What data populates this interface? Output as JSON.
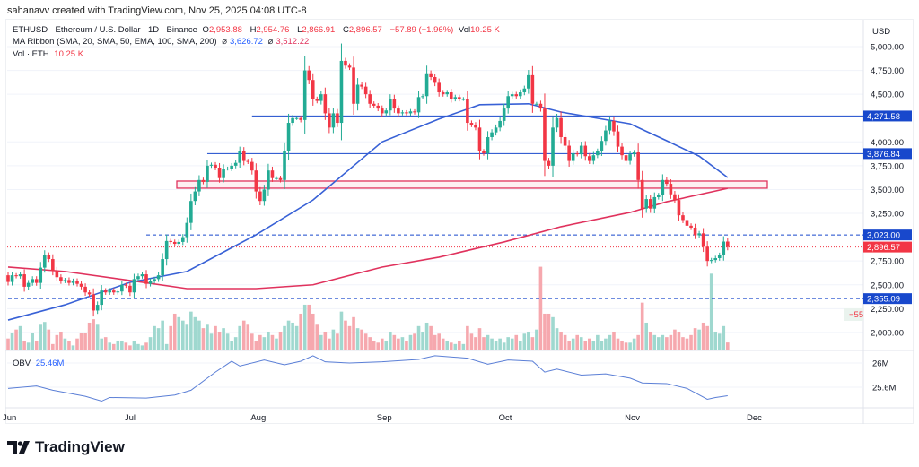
{
  "header": {
    "credit": "sahanavv created with TradingView.com, Nov 25, 2025 04:08 UTC-8"
  },
  "legend": {
    "symbol": "ETHUSD · Ethereum / U.S. Dollar · 1D · Binance",
    "o_label": "O",
    "o": "2,953.88",
    "h_label": "H",
    "h": "2,954.76",
    "l_label": "L",
    "l": "2,866.91",
    "c_label": "C",
    "c": "2,896.57",
    "change": "−57.89 (−1.96%)",
    "vol_label": "Vol",
    "vol": "10.25 K",
    "ma_title": "MA Ribbon (SMA, 20, SMA, 50, EMA, 100, SMA, 200)",
    "ma_sym1": "⌀",
    "ma1": "3,626.72",
    "ma_sym2": "⌀",
    "ma2": "3,512.22",
    "vol_title": "Vol · ETH",
    "vol_value": "10.25 K",
    "obv_title": "OBV",
    "obv_value": "25.46M"
  },
  "logo": {
    "text": "TradingView"
  },
  "colors": {
    "up": "#22ab94",
    "down": "#f23645",
    "vol_up": "#9fd8cf",
    "vol_down": "#f6a8ae",
    "ma_fast": "#3861d6",
    "ma_slow": "#e0325d",
    "level": "#1848cc",
    "zone": "#e0325d"
  },
  "chart_data": {
    "type": "candlestick",
    "symbol": "ETHUSD",
    "interval": "1D",
    "currency": "USD",
    "start_date": "2025-06-01",
    "end_date": "2025-11-25",
    "ylim": [
      1900,
      5080
    ],
    "y_ticks": [
      "5,000.00",
      "4,750.00",
      "4,500.00",
      "4,000.00",
      "3,750.00",
      "3,500.00",
      "3,250.00",
      "2,750.00",
      "2,500.00",
      "2,250.00",
      "2,000.00"
    ],
    "y_tick_values": [
      5000,
      4750,
      4500,
      4000,
      3750,
      3500,
      3250,
      2750,
      2500,
      2250,
      2000
    ],
    "x_ticks": [
      {
        "label": "Jun",
        "date": "2025-06-01"
      },
      {
        "label": "Jul",
        "date": "2025-07-01"
      },
      {
        "label": "Aug",
        "date": "2025-08-01"
      },
      {
        "label": "Sep",
        "date": "2025-09-01"
      },
      {
        "label": "Oct",
        "date": "2025-10-01"
      },
      {
        "label": "Nov",
        "date": "2025-11-01"
      },
      {
        "label": "Dec",
        "date": "2025-12-01"
      }
    ],
    "first_open": 2600,
    "closes": [
      2530,
      2600,
      2590,
      2610,
      2480,
      2520,
      2560,
      2520,
      2680,
      2810,
      2770,
      2650,
      2580,
      2540,
      2550,
      2520,
      2540,
      2510,
      2480,
      2420,
      2400,
      2230,
      2290,
      2440,
      2420,
      2440,
      2420,
      2430,
      2500,
      2490,
      2420,
      2560,
      2590,
      2610,
      2510,
      2540,
      2560,
      2600,
      2770,
      2960,
      2950,
      2930,
      2950,
      3000,
      3150,
      3380,
      3480,
      3600,
      3580,
      3750,
      3760,
      3730,
      3620,
      3720,
      3720,
      3750,
      3780,
      3900,
      3800,
      3790,
      3700,
      3480,
      3380,
      3500,
      3700,
      3620,
      3620,
      3600,
      3900,
      4200,
      4250,
      4250,
      4230,
      4750,
      4650,
      4450,
      4430,
      4500,
      4300,
      4150,
      4300,
      4200,
      4850,
      4800,
      4780,
      4400,
      4600,
      4580,
      4500,
      4400,
      4380,
      4350,
      4300,
      4330,
      4450,
      4350,
      4300,
      4310,
      4300,
      4320,
      4310,
      4470,
      4480,
      4720,
      4680,
      4620,
      4520,
      4500,
      4520,
      4450,
      4470,
      4450,
      4450,
      4200,
      4180,
      4150,
      3900,
      3880,
      4050,
      4100,
      4150,
      4220,
      4350,
      4480,
      4500,
      4480,
      4520,
      4560,
      4700,
      4400,
      4400,
      4350,
      3800,
      3750,
      4150,
      4250,
      4050,
      3960,
      3800,
      3880,
      3870,
      3960,
      3850,
      3800,
      3860,
      3900,
      4010,
      4120,
      4220,
      4110,
      3950,
      3860,
      3800,
      3870,
      3890,
      3600,
      3300,
      3400,
      3300,
      3420,
      3440,
      3600,
      3560,
      3450,
      3390,
      3230,
      3180,
      3120,
      3100,
      3020,
      3040,
      2900,
      2750,
      2760,
      2780,
      2810,
      2953.88,
      2896.57
    ],
    "volumes_k": [
      16,
      24,
      29,
      34,
      13,
      10,
      24,
      13,
      36,
      40,
      29,
      8,
      21,
      26,
      16,
      13,
      6,
      16,
      24,
      24,
      39,
      44,
      36,
      16,
      18,
      10,
      8,
      13,
      13,
      10,
      6,
      13,
      8,
      6,
      10,
      18,
      34,
      31,
      42,
      8,
      34,
      52,
      47,
      42,
      36,
      55,
      47,
      42,
      31,
      36,
      23,
      34,
      26,
      31,
      23,
      13,
      18,
      34,
      42,
      36,
      23,
      13,
      21,
      18,
      26,
      21,
      16,
      26,
      34,
      42,
      39,
      34,
      52,
      65,
      65,
      52,
      36,
      21,
      26,
      16,
      29,
      23,
      55,
      42,
      34,
      47,
      31,
      29,
      23,
      18,
      13,
      10,
      16,
      13,
      26,
      21,
      16,
      18,
      13,
      21,
      23,
      34,
      26,
      39,
      34,
      21,
      23,
      16,
      13,
      10,
      8,
      13,
      8,
      34,
      23,
      18,
      31,
      18,
      21,
      16,
      13,
      16,
      10,
      18,
      16,
      21,
      13,
      23,
      26,
      18,
      29,
      120,
      52,
      52,
      47,
      31,
      26,
      21,
      13,
      16,
      21,
      18,
      13,
      16,
      13,
      21,
      13,
      16,
      21,
      26,
      16,
      13,
      10,
      10,
      16,
      21,
      68,
      39,
      26,
      21,
      18,
      21,
      18,
      21,
      29,
      26,
      18,
      16,
      21,
      31,
      29,
      39,
      34,
      110,
      26,
      23,
      34,
      10.25
    ],
    "ma_fast": [
      [
        "2025-06-01",
        2130
      ],
      [
        "2025-06-15",
        2290
      ],
      [
        "2025-07-01",
        2526
      ],
      [
        "2025-07-15",
        2640
      ],
      [
        "2025-08-01",
        3025
      ],
      [
        "2025-08-15",
        3390
      ],
      [
        "2025-09-01",
        4000
      ],
      [
        "2025-09-15",
        4240
      ],
      [
        "2025-09-25",
        4390
      ],
      [
        "2025-10-07",
        4400
      ],
      [
        "2025-10-15",
        4313
      ],
      [
        "2025-11-01",
        4190
      ],
      [
        "2025-11-10",
        4012
      ],
      [
        "2025-11-18",
        3850
      ],
      [
        "2025-11-25",
        3626.72
      ]
    ],
    "ma_slow": [
      [
        "2025-06-01",
        2686
      ],
      [
        "2025-06-15",
        2640
      ],
      [
        "2025-07-01",
        2545
      ],
      [
        "2025-07-15",
        2460
      ],
      [
        "2025-08-01",
        2460
      ],
      [
        "2025-08-15",
        2500
      ],
      [
        "2025-09-01",
        2686
      ],
      [
        "2025-09-15",
        2790
      ],
      [
        "2025-10-01",
        2950
      ],
      [
        "2025-10-15",
        3110
      ],
      [
        "2025-11-01",
        3260
      ],
      [
        "2025-11-10",
        3372
      ],
      [
        "2025-11-25",
        3512.22
      ]
    ],
    "levels": [
      {
        "price": 4271.58,
        "label": "4,271.58",
        "style": "solid",
        "from": "2025-07-31"
      },
      {
        "price": 3876.84,
        "label": "3,876.84",
        "style": "solid",
        "from": "2025-07-20"
      },
      {
        "price": 3023.0,
        "label": "3,023.00",
        "style": "dashed",
        "from": "2025-07-05"
      },
      {
        "price": 2355.09,
        "label": "2,355.09",
        "style": "dashed",
        "from": "2025-06-01"
      }
    ],
    "last_price": {
      "price": 2896.57,
      "label": "2,896.57"
    },
    "zone": {
      "from": "2025-07-13",
      "to": "2025-11-35",
      "low": 3514,
      "high": 3589
    },
    "side_badge": "−55",
    "obv": {
      "ticks": [
        {
          "label": "26M",
          "value": 26.0
        },
        {
          "label": "25.6M",
          "value": 25.6
        }
      ],
      "points": [
        [
          "2025-06-01",
          25.58
        ],
        [
          "2025-06-08",
          25.62
        ],
        [
          "2025-06-12",
          25.55
        ],
        [
          "2025-06-20",
          25.45
        ],
        [
          "2025-06-24",
          25.37
        ],
        [
          "2025-06-26",
          25.43
        ],
        [
          "2025-07-05",
          25.42
        ],
        [
          "2025-07-12",
          25.47
        ],
        [
          "2025-07-16",
          25.55
        ],
        [
          "2025-07-22",
          25.85
        ],
        [
          "2025-07-26",
          26.03
        ],
        [
          "2025-07-28",
          25.95
        ],
        [
          "2025-08-03",
          26.05
        ],
        [
          "2025-08-08",
          25.97
        ],
        [
          "2025-08-12",
          26.03
        ],
        [
          "2025-08-15",
          26.12
        ],
        [
          "2025-08-18",
          26.02
        ],
        [
          "2025-08-24",
          26.0
        ],
        [
          "2025-09-01",
          26.02
        ],
        [
          "2025-09-10",
          26.06
        ],
        [
          "2025-09-14",
          26.12
        ],
        [
          "2025-09-22",
          26.08
        ],
        [
          "2025-09-27",
          25.98
        ],
        [
          "2025-10-02",
          26.05
        ],
        [
          "2025-10-08",
          26.03
        ],
        [
          "2025-10-11",
          25.85
        ],
        [
          "2025-10-14",
          25.9
        ],
        [
          "2025-10-20",
          25.8
        ],
        [
          "2025-10-26",
          25.82
        ],
        [
          "2025-11-01",
          25.75
        ],
        [
          "2025-11-04",
          25.67
        ],
        [
          "2025-11-10",
          25.66
        ],
        [
          "2025-11-15",
          25.58
        ],
        [
          "2025-11-20",
          25.4
        ],
        [
          "2025-11-22",
          25.43
        ],
        [
          "2025-11-25",
          25.46
        ]
      ]
    }
  }
}
